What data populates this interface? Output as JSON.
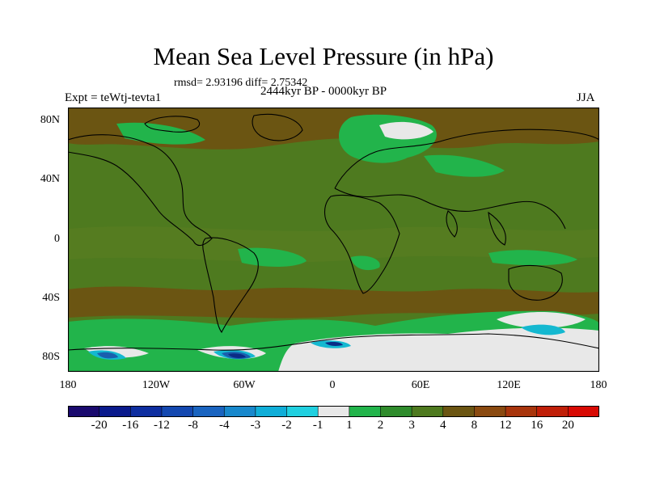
{
  "title": "Mean Sea Level Pressure (in hPa)",
  "stats": "rmsd= 2.93196 diff= 2.75342",
  "experiment": "Expt = teWtj-tevta1",
  "period": "2444kyr BP - 0000kyr BP",
  "season": "JJA",
  "map": {
    "lat_labels": [
      "80N",
      "40N",
      "0",
      "40S",
      "80S"
    ],
    "lon_labels": [
      "180",
      "120W",
      "60W",
      "0",
      "60E",
      "120E",
      "180"
    ],
    "colors": {
      "background": "#4e7a1f",
      "arctic_brown": "#6b5512",
      "trop_band": "#5a7d22",
      "green": "#22b44b",
      "white": "#e8e8e8",
      "cyan": "#14b8d0",
      "blue": "#1a5fae",
      "deep_blue": "#0b2c86",
      "coast": "#000000"
    }
  },
  "colorbar": {
    "labels": [
      "-20",
      "-16",
      "-12",
      "-8",
      "-4",
      "-3",
      "-2",
      "-1",
      "1",
      "2",
      "3",
      "4",
      "8",
      "12",
      "16",
      "20"
    ],
    "colors": [
      "#1a0a6e",
      "#0a1a8c",
      "#0e2ea0",
      "#1448b0",
      "#1a64c0",
      "#1888cc",
      "#10aed8",
      "#20d0e0",
      "#e8e8e8",
      "#22b44b",
      "#2f8c2c",
      "#4e7a1f",
      "#6b5512",
      "#8a4a10",
      "#a8350c",
      "#c01f08",
      "#d80a04"
    ]
  }
}
